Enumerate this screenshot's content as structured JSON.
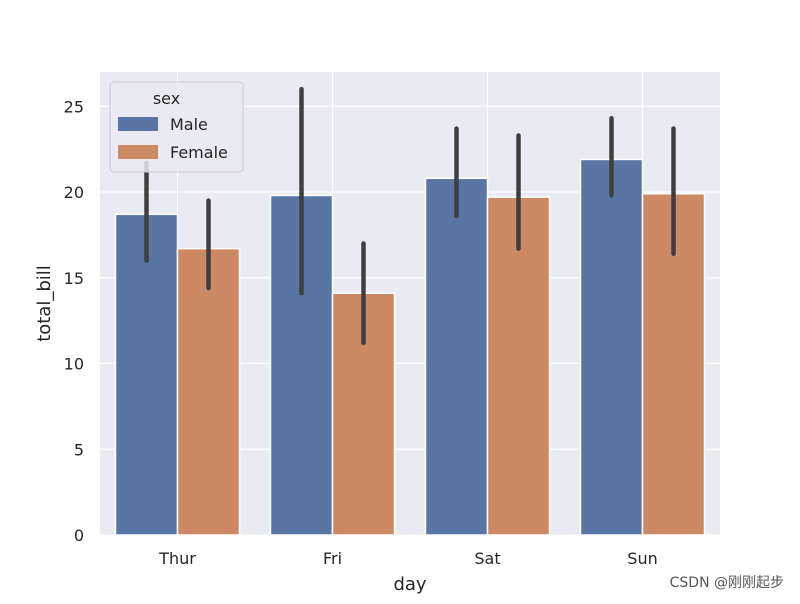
{
  "chart_data": {
    "type": "bar",
    "title": "",
    "xlabel": "day",
    "ylabel": "total_bill",
    "categories": [
      "Thur",
      "Fri",
      "Sat",
      "Sun"
    ],
    "ylim": [
      0,
      27
    ],
    "yticks": [
      0,
      5,
      10,
      15,
      20,
      25
    ],
    "ytick_labels": [
      "0",
      "5",
      "10",
      "15",
      "20",
      "25"
    ],
    "grid": true,
    "legend": {
      "title": "sex",
      "placement": "upper-left"
    },
    "series": [
      {
        "name": "Male",
        "color": "#5875a4",
        "values": [
          18.7,
          19.8,
          20.8,
          21.9
        ],
        "ci_low": [
          16.0,
          14.1,
          18.6,
          19.8
        ],
        "ci_high": [
          21.7,
          26.0,
          23.7,
          24.3
        ]
      },
      {
        "name": "Female",
        "color": "#cc8963",
        "values": [
          16.7,
          14.1,
          19.7,
          19.9
        ],
        "ci_low": [
          14.4,
          11.2,
          16.7,
          16.4
        ],
        "ci_high": [
          19.5,
          17.0,
          23.3,
          23.7
        ]
      }
    ],
    "errorbar_color": "#3f3f3f",
    "background_color": "#eaeaf2",
    "grid_color": "#ffffff"
  },
  "watermark": "CSDN @刚刚起步"
}
